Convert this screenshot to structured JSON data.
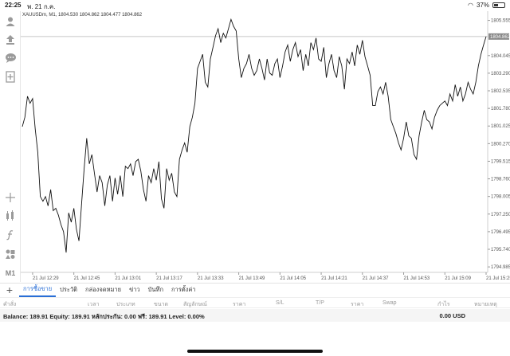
{
  "status_bar": {
    "time": "22:25",
    "date": "พ. 21 ก.ค.",
    "battery": "37%",
    "battery_level": 0.37
  },
  "left_toolbar": {
    "icons": [
      "account-icon",
      "deposit-icon",
      "chat-icon",
      "add-document-icon",
      "crosshair-icon",
      "indicators-icon",
      "function-icon",
      "objects-icon"
    ],
    "timeframe": "M1"
  },
  "chart_data": {
    "type": "line",
    "header": "XAUUSDm, M1, 1804.530 1804.862 1804.477 1804.862",
    "current_price_label": "1804.862",
    "current_price": 1804.862,
    "y_ticks": [
      "1805.555",
      "1804.045",
      "1803.290",
      "1802.535",
      "1801.780",
      "1801.025",
      "1800.270",
      "1799.515",
      "1798.760",
      "1798.005",
      "1797.250",
      "1796.495",
      "1795.740",
      "1794.985"
    ],
    "y_tick_values": [
      1805.555,
      1804.045,
      1803.29,
      1802.535,
      1801.78,
      1801.025,
      1800.27,
      1799.515,
      1798.76,
      1798.005,
      1797.25,
      1796.495,
      1795.74,
      1794.985
    ],
    "ylim": [
      1794.75,
      1805.95
    ],
    "x_ticks": [
      "21 Jul 12:29",
      "21 Jul 12:45",
      "21 Jul 13:01",
      "21 Jul 13:17",
      "21 Jul 13:33",
      "21 Jul 13:49",
      "21 Jul 14:05",
      "21 Jul 14:21",
      "21 Jul 14:37",
      "21 Jul 14:53",
      "21 Jul 15:09",
      "21 Jul 15:25"
    ],
    "x_tick_index": [
      4,
      20,
      36,
      52,
      68,
      84,
      100,
      116,
      132,
      148,
      164,
      180
    ],
    "series": [
      {
        "values": [
          1801.0,
          1801.4,
          1802.3,
          1802.0,
          1802.2,
          1800.9,
          1799.9,
          1798.0,
          1797.8,
          1798.0,
          1797.6,
          1798.3,
          1797.4,
          1797.5,
          1797.2,
          1796.8,
          1796.5,
          1795.6,
          1797.3,
          1796.9,
          1797.5,
          1796.6,
          1796.1,
          1797.7,
          1799.2,
          1800.5,
          1799.4,
          1799.8,
          1799.0,
          1798.2,
          1798.9,
          1798.6,
          1797.6,
          1798.5,
          1798.9,
          1797.8,
          1798.8,
          1798.1,
          1798.9,
          1798.0,
          1799.3,
          1799.2,
          1799.4,
          1798.9,
          1799.5,
          1799.6,
          1799.1,
          1798.3,
          1797.8,
          1798.9,
          1798.6,
          1799.2,
          1798.7,
          1799.5,
          1797.9,
          1797.5,
          1799.2,
          1798.7,
          1799.0,
          1798.2,
          1798.0,
          1799.6,
          1800.0,
          1800.3,
          1799.9,
          1801.0,
          1801.4,
          1802.0,
          1803.5,
          1803.8,
          1804.1,
          1802.9,
          1802.7,
          1803.9,
          1804.4,
          1804.9,
          1805.2,
          1804.6,
          1805.0,
          1804.8,
          1805.2,
          1805.6,
          1805.3,
          1805.1,
          1803.9,
          1803.1,
          1803.5,
          1803.7,
          1804.1,
          1803.5,
          1803.2,
          1803.4,
          1803.9,
          1803.5,
          1803.0,
          1803.9,
          1803.3,
          1803.2,
          1803.7,
          1803.9,
          1803.1,
          1803.6,
          1804.2,
          1804.5,
          1803.8,
          1804.3,
          1804.6,
          1804.0,
          1804.3,
          1803.4,
          1804.1,
          1803.6,
          1804.6,
          1804.3,
          1804.8,
          1803.9,
          1803.8,
          1804.4,
          1803.1,
          1803.7,
          1804.1,
          1803.4,
          1803.1,
          1804.0,
          1803.6,
          1802.6,
          1803.9,
          1803.7,
          1804.2,
          1803.6,
          1804.5,
          1804.1,
          1804.7,
          1804.0,
          1803.6,
          1803.2,
          1801.9,
          1801.9,
          1802.5,
          1802.7,
          1802.4,
          1802.9,
          1802.3,
          1801.3,
          1801.0,
          1800.7,
          1800.3,
          1800.0,
          1800.5,
          1801.2,
          1800.6,
          1800.5,
          1799.8,
          1799.6,
          1800.6,
          1801.2,
          1801.7,
          1801.3,
          1801.2,
          1800.9,
          1801.4,
          1801.7,
          1801.9,
          1802.0,
          1802.1,
          1801.9,
          1802.4,
          1802.1,
          1802.8,
          1802.3,
          1802.7,
          1802.1,
          1802.4,
          1802.9,
          1802.6,
          1802.4,
          1802.9,
          1803.6,
          1804.1,
          1804.5,
          1804.862
        ]
      }
    ],
    "grid": false
  },
  "tabs": {
    "add_label": "+",
    "items": [
      {
        "label": "การซื้อขาย",
        "active": true
      },
      {
        "label": "ประวัติ"
      },
      {
        "label": "กล่องจดหมาย"
      },
      {
        "label": "ข่าว"
      },
      {
        "label": "บันทึก"
      },
      {
        "label": "การตั้งค่า"
      }
    ]
  },
  "columns": [
    "คำสั่ง",
    "เวลา",
    "ประเภท",
    "ขนาด",
    "สัญลักษณ์",
    "ราคา",
    "S/L",
    "T/P",
    "ราคา",
    "Swap",
    "กำไร",
    "หมายเหตุ"
  ],
  "balance": {
    "text": "Balance: 189.91 Equity: 189.91 หลักประกัน: 0.00 ฟรี: 189.91 Level: 0.00%",
    "profit": "0.00",
    "currency": "USD"
  }
}
